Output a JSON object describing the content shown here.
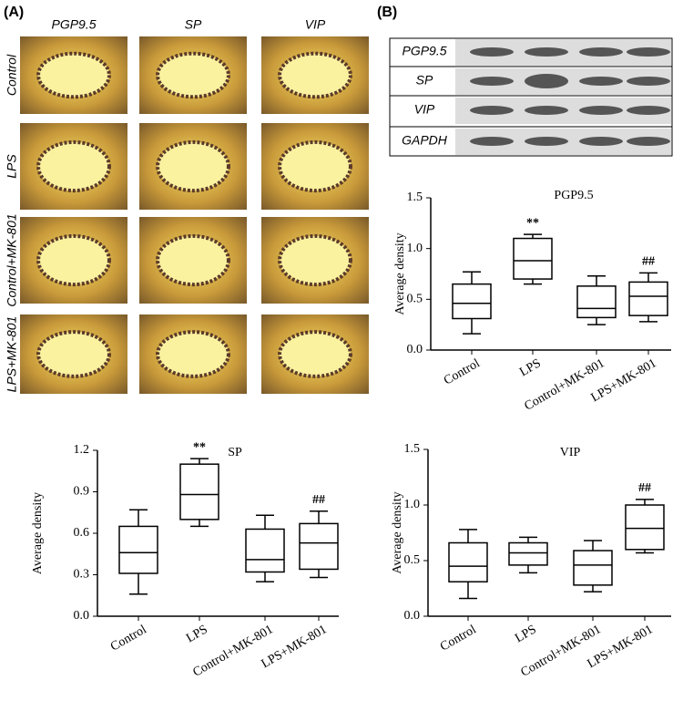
{
  "panels": {
    "a_label": "(A)",
    "b_label": "(B)",
    "columns": [
      "PGP9.5",
      "SP",
      "VIP"
    ],
    "rows": [
      "Control",
      "LPS",
      "Control+MK-801",
      "LPS+MK-801"
    ],
    "blot_labels": [
      "PGP9.5",
      "SP",
      "VIP",
      "GAPDH"
    ]
  },
  "chart_data": [
    {
      "type": "box",
      "title": "PGP9.5",
      "y_label": "Average density",
      "categories": [
        "Control",
        "LPS",
        "Control+MK-801",
        "LPS+MK-801"
      ],
      "min": [
        0.16,
        0.65,
        0.25,
        0.28
      ],
      "q1": [
        0.31,
        0.7,
        0.32,
        0.34
      ],
      "median": [
        0.46,
        0.88,
        0.41,
        0.53
      ],
      "q3": [
        0.65,
        1.1,
        0.63,
        0.67
      ],
      "max": [
        0.77,
        1.14,
        0.73,
        0.76
      ],
      "annotations": [
        null,
        "**",
        null,
        "##"
      ],
      "ylim": [
        0,
        1.5
      ],
      "yticks": [
        {
          "value": 0,
          "label": "0.0"
        },
        0.5,
        {
          "value": 1,
          "label": "1.0"
        },
        1.5
      ],
      "color": "#000000"
    },
    {
      "type": "box",
      "title": "SP",
      "y_label": "Average density",
      "categories": [
        "Control",
        "LPS",
        "Control+MK-801",
        "LPS+MK-801"
      ],
      "min": [
        0.16,
        0.65,
        0.25,
        0.28
      ],
      "q1": [
        0.31,
        0.7,
        0.32,
        0.34
      ],
      "median": [
        0.46,
        0.88,
        0.41,
        0.53
      ],
      "q3": [
        0.65,
        1.1,
        0.63,
        0.67
      ],
      "max": [
        0.77,
        1.14,
        0.73,
        0.76
      ],
      "annotations": [
        null,
        "**",
        null,
        "##"
      ],
      "ylim": [
        0,
        1.2
      ],
      "yticks": [
        {
          "value": 0,
          "label": "0.0"
        },
        0.3,
        0.6,
        0.9,
        1.2
      ],
      "color": "#000000"
    },
    {
      "type": "box",
      "title": "VIP",
      "y_label": "Average density",
      "categories": [
        "Control",
        "LPS",
        "Control+MK-801",
        "LPS+MK-801"
      ],
      "min": [
        0.16,
        0.39,
        0.22,
        0.57
      ],
      "q1": [
        0.31,
        0.46,
        0.28,
        0.6
      ],
      "median": [
        0.45,
        0.57,
        0.46,
        0.79
      ],
      "q3": [
        0.66,
        0.66,
        0.59,
        1.0
      ],
      "max": [
        0.78,
        0.71,
        0.68,
        1.05
      ],
      "annotations": [
        null,
        null,
        null,
        "##"
      ],
      "ylim": [
        0,
        1.5
      ],
      "yticks": [
        {
          "value": 0,
          "label": "0.0"
        },
        0.5,
        {
          "value": 1,
          "label": "1.0"
        },
        1.5
      ],
      "color": "#000000"
    }
  ]
}
